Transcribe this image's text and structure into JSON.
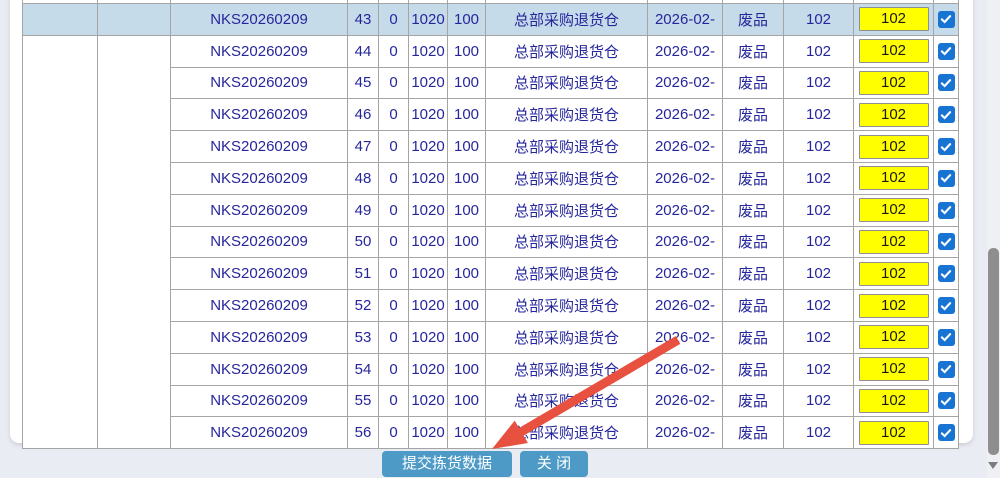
{
  "table": {
    "highlighted_seq": "43",
    "rows": [
      {
        "doc": "NKS20260209",
        "seq": "43",
        "qty_a": "0",
        "qty_b": "1020",
        "qty_c": "100",
        "warehouse": "总部采购退货仓",
        "date": "2026-02-",
        "status": "废品",
        "qty_d": "102",
        "pick_qty": "102",
        "checked": true
      },
      {
        "doc": "NKS20260209",
        "seq": "44",
        "qty_a": "0",
        "qty_b": "1020",
        "qty_c": "100",
        "warehouse": "总部采购退货仓",
        "date": "2026-02-",
        "status": "废品",
        "qty_d": "102",
        "pick_qty": "102",
        "checked": true
      },
      {
        "doc": "NKS20260209",
        "seq": "45",
        "qty_a": "0",
        "qty_b": "1020",
        "qty_c": "100",
        "warehouse": "总部采购退货仓",
        "date": "2026-02-",
        "status": "废品",
        "qty_d": "102",
        "pick_qty": "102",
        "checked": true
      },
      {
        "doc": "NKS20260209",
        "seq": "46",
        "qty_a": "0",
        "qty_b": "1020",
        "qty_c": "100",
        "warehouse": "总部采购退货仓",
        "date": "2026-02-",
        "status": "废品",
        "qty_d": "102",
        "pick_qty": "102",
        "checked": true
      },
      {
        "doc": "NKS20260209",
        "seq": "47",
        "qty_a": "0",
        "qty_b": "1020",
        "qty_c": "100",
        "warehouse": "总部采购退货仓",
        "date": "2026-02-",
        "status": "废品",
        "qty_d": "102",
        "pick_qty": "102",
        "checked": true
      },
      {
        "doc": "NKS20260209",
        "seq": "48",
        "qty_a": "0",
        "qty_b": "1020",
        "qty_c": "100",
        "warehouse": "总部采购退货仓",
        "date": "2026-02-",
        "status": "废品",
        "qty_d": "102",
        "pick_qty": "102",
        "checked": true
      },
      {
        "doc": "NKS20260209",
        "seq": "49",
        "qty_a": "0",
        "qty_b": "1020",
        "qty_c": "100",
        "warehouse": "总部采购退货仓",
        "date": "2026-02-",
        "status": "废品",
        "qty_d": "102",
        "pick_qty": "102",
        "checked": true
      },
      {
        "doc": "NKS20260209",
        "seq": "50",
        "qty_a": "0",
        "qty_b": "1020",
        "qty_c": "100",
        "warehouse": "总部采购退货仓",
        "date": "2026-02-",
        "status": "废品",
        "qty_d": "102",
        "pick_qty": "102",
        "checked": true
      },
      {
        "doc": "NKS20260209",
        "seq": "51",
        "qty_a": "0",
        "qty_b": "1020",
        "qty_c": "100",
        "warehouse": "总部采购退货仓",
        "date": "2026-02-",
        "status": "废品",
        "qty_d": "102",
        "pick_qty": "102",
        "checked": true
      },
      {
        "doc": "NKS20260209",
        "seq": "52",
        "qty_a": "0",
        "qty_b": "1020",
        "qty_c": "100",
        "warehouse": "总部采购退货仓",
        "date": "2026-02-",
        "status": "废品",
        "qty_d": "102",
        "pick_qty": "102",
        "checked": true
      },
      {
        "doc": "NKS20260209",
        "seq": "53",
        "qty_a": "0",
        "qty_b": "1020",
        "qty_c": "100",
        "warehouse": "总部采购退货仓",
        "date": "2026-02-",
        "status": "废品",
        "qty_d": "102",
        "pick_qty": "102",
        "checked": true
      },
      {
        "doc": "NKS20260209",
        "seq": "54",
        "qty_a": "0",
        "qty_b": "1020",
        "qty_c": "100",
        "warehouse": "总部采购退货仓",
        "date": "2026-02-",
        "status": "废品",
        "qty_d": "102",
        "pick_qty": "102",
        "checked": true
      },
      {
        "doc": "NKS20260209",
        "seq": "55",
        "qty_a": "0",
        "qty_b": "1020",
        "qty_c": "100",
        "warehouse": "总部采购退货仓",
        "date": "2026-02-",
        "status": "废品",
        "qty_d": "102",
        "pick_qty": "102",
        "checked": true
      },
      {
        "doc": "NKS20260209",
        "seq": "56",
        "qty_a": "0",
        "qty_b": "1020",
        "qty_c": "100",
        "warehouse": "总部采购退货仓",
        "date": "2026-02-",
        "status": "废品",
        "qty_d": "102",
        "pick_qty": "102",
        "checked": true
      }
    ]
  },
  "footer": {
    "submit_label": "提交拣货数据",
    "close_label": "关 闭"
  },
  "colors": {
    "highlight_row": "#c6dbe9",
    "row_text": "#26269c",
    "pick_input_bg": "#ffff00",
    "checkbox_blue": "#1874d2",
    "button_blue": "#4d9ac6",
    "arrow_red": "#e8503f",
    "page_background": "#e9ecf2"
  }
}
